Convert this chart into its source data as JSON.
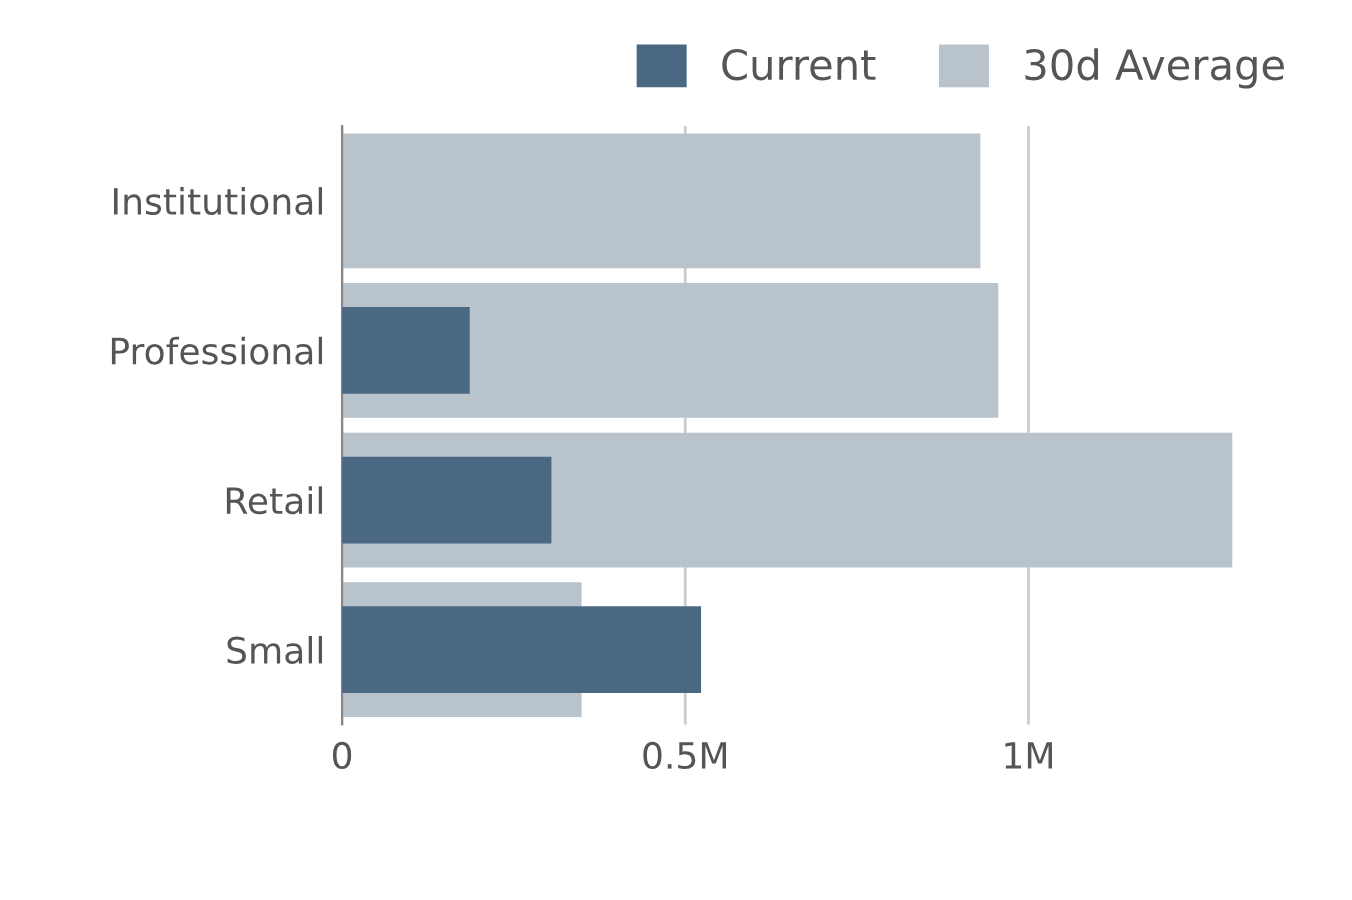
{
  "chart_data": {
    "type": "bar",
    "orientation": "horizontal",
    "categories": [
      "Institutional",
      "Professional",
      "Retail",
      "Small"
    ],
    "series": [
      {
        "name": "Current",
        "color": "#4a6882",
        "values": [
          0,
          186000,
          305000,
          523000
        ]
      },
      {
        "name": "30d Average",
        "color": "#b8c3cc",
        "values": [
          930000,
          956000,
          1297000,
          349000
        ]
      }
    ],
    "xlim": [
      0,
      1300000
    ],
    "xticks": [
      0,
      {
        "value": 500000,
        "label": "0.5M"
      },
      {
        "value": 1000000,
        "label": "1M"
      }
    ],
    "grid": "x",
    "legend": "top right"
  }
}
